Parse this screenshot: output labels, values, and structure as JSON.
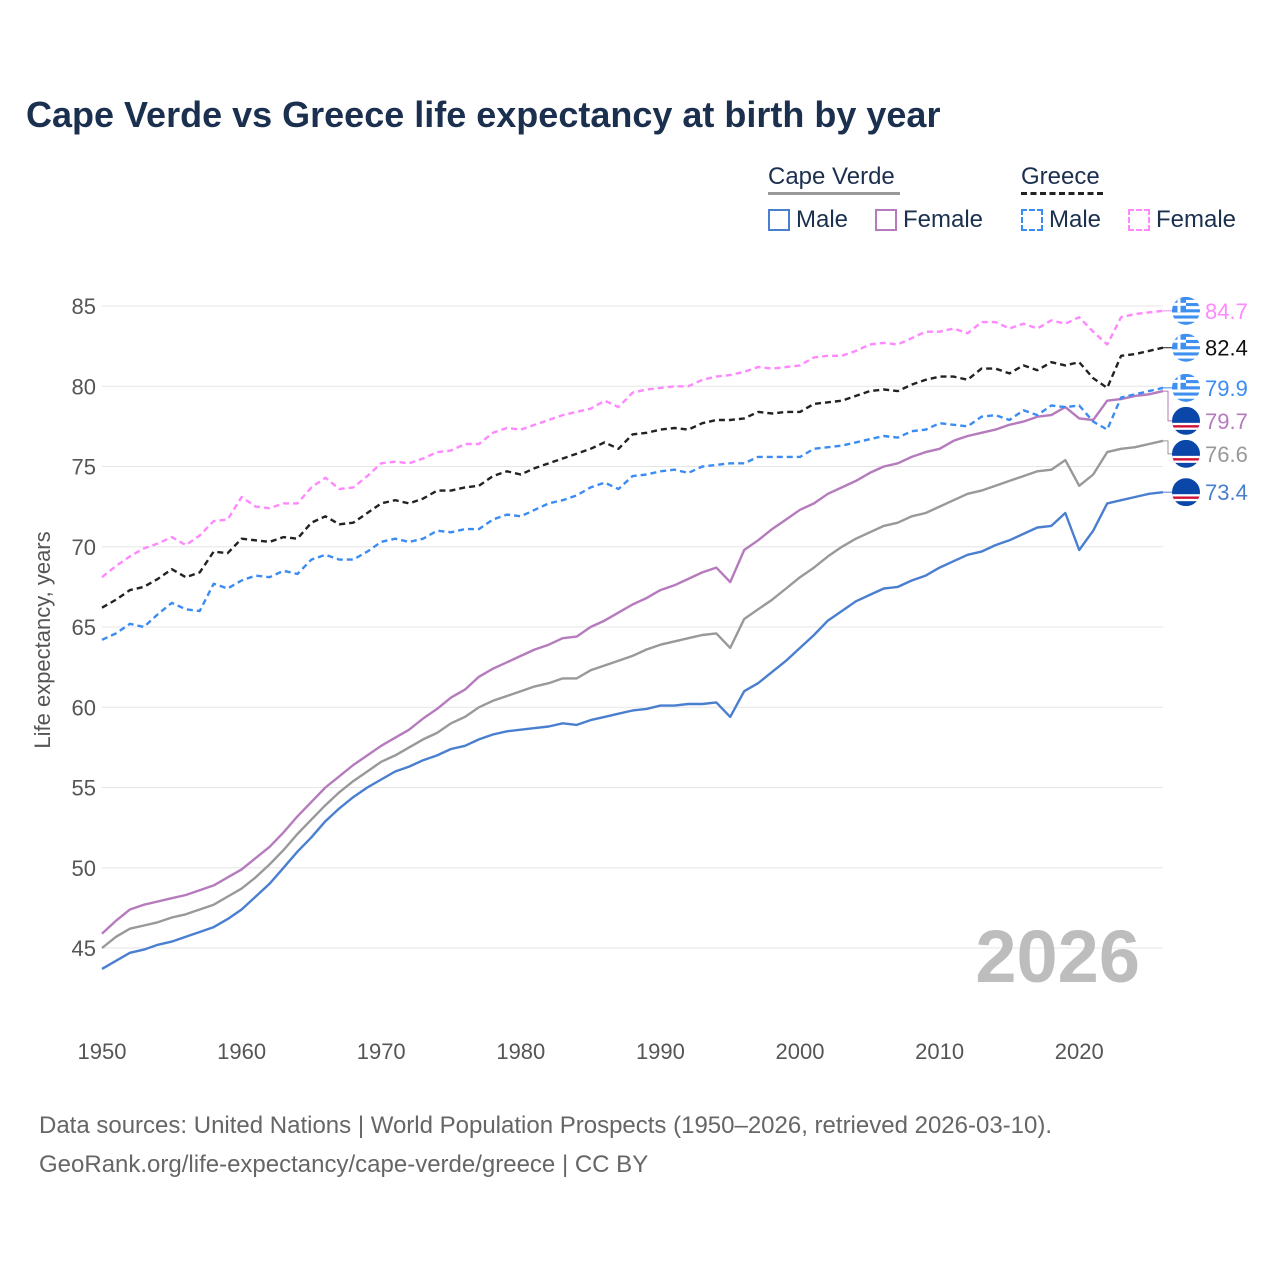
{
  "title": "Cape Verde vs Greece life expectancy at birth by year",
  "legend": {
    "groups": [
      {
        "name": "Cape Verde",
        "items": [
          "Male",
          "Female"
        ]
      },
      {
        "name": "Greece",
        "items": [
          "Male",
          "Female"
        ]
      }
    ]
  },
  "watermark_year": "2026",
  "footer": {
    "line1": "Data sources: United Nations | World Population Prospects (1950–2026, retrieved 2026-03-10).",
    "line2": "GeoRank.org/life-expectancy/cape-verde/greece | CC BY"
  },
  "chart_data": {
    "type": "line",
    "title": "Cape Verde vs Greece life expectancy at birth by year",
    "xlabel": "",
    "ylabel": "Life expectancy, years",
    "xlim": [
      1950,
      2026
    ],
    "ylim": [
      43,
      86
    ],
    "xticks": [
      "1950",
      "1960",
      "1970",
      "1980",
      "1990",
      "2000",
      "2010",
      "2020"
    ],
    "yticks": [
      "45",
      "50",
      "55",
      "60",
      "65",
      "70",
      "75",
      "80",
      "85"
    ],
    "grid": true,
    "legend_position": "top-right",
    "x_start": 1950,
    "series": [
      {
        "name": "Greece Female",
        "country": "Greece",
        "sex": "Female",
        "color": "#ff88ff",
        "dash": true,
        "end_label": "84.7",
        "values": [
          68.1,
          68.8,
          69.4,
          69.9,
          70.2,
          70.6,
          70.1,
          70.7,
          71.6,
          71.7,
          73.1,
          72.5,
          72.4,
          72.7,
          72.7,
          73.7,
          74.3,
          73.6,
          73.7,
          74.4,
          75.2,
          75.3,
          75.2,
          75.5,
          75.9,
          76.0,
          76.4,
          76.4,
          77.1,
          77.4,
          77.3,
          77.6,
          77.9,
          78.2,
          78.4,
          78.6,
          79.1,
          78.7,
          79.6,
          79.8,
          79.9,
          80.0,
          80.0,
          80.4,
          80.6,
          80.7,
          80.9,
          81.2,
          81.1,
          81.2,
          81.3,
          81.8,
          81.9,
          81.9,
          82.2,
          82.6,
          82.7,
          82.6,
          83.0,
          83.4,
          83.4,
          83.6,
          83.3,
          84.0,
          84.0,
          83.6,
          83.9,
          83.6,
          84.1,
          83.9,
          84.3,
          83.4,
          82.6,
          84.3,
          84.5,
          84.6,
          84.7
        ]
      },
      {
        "name": "Greece Total",
        "country": "Greece",
        "sex": "Total",
        "color": "#222222",
        "dash": true,
        "end_label": "82.4",
        "values": [
          66.2,
          66.7,
          67.3,
          67.5,
          68.0,
          68.6,
          68.1,
          68.4,
          69.7,
          69.6,
          70.5,
          70.4,
          70.3,
          70.6,
          70.5,
          71.5,
          71.9,
          71.4,
          71.5,
          72.1,
          72.7,
          72.9,
          72.7,
          73.0,
          73.5,
          73.5,
          73.7,
          73.8,
          74.4,
          74.7,
          74.5,
          74.9,
          75.2,
          75.5,
          75.8,
          76.1,
          76.5,
          76.1,
          77.0,
          77.1,
          77.3,
          77.4,
          77.3,
          77.7,
          77.9,
          77.9,
          78.0,
          78.4,
          78.3,
          78.4,
          78.4,
          78.9,
          79.0,
          79.1,
          79.4,
          79.7,
          79.8,
          79.7,
          80.1,
          80.4,
          80.6,
          80.6,
          80.4,
          81.1,
          81.1,
          80.8,
          81.3,
          81.0,
          81.5,
          81.3,
          81.5,
          80.5,
          79.9,
          81.9,
          82.0,
          82.2,
          82.4
        ]
      },
      {
        "name": "Greece Male",
        "country": "Greece",
        "sex": "Male",
        "color": "#3b8cf2",
        "dash": true,
        "end_label": "79.9",
        "values": [
          64.2,
          64.6,
          65.2,
          65.0,
          65.8,
          66.5,
          66.1,
          66.0,
          67.7,
          67.4,
          67.9,
          68.2,
          68.1,
          68.5,
          68.3,
          69.2,
          69.5,
          69.2,
          69.2,
          69.7,
          70.3,
          70.5,
          70.3,
          70.5,
          71.0,
          70.9,
          71.1,
          71.1,
          71.7,
          72.0,
          71.9,
          72.3,
          72.7,
          72.9,
          73.2,
          73.7,
          74.0,
          73.6,
          74.4,
          74.5,
          74.7,
          74.8,
          74.6,
          75.0,
          75.1,
          75.2,
          75.2,
          75.6,
          75.6,
          75.6,
          75.6,
          76.1,
          76.2,
          76.3,
          76.5,
          76.7,
          76.9,
          76.8,
          77.2,
          77.3,
          77.7,
          77.6,
          77.5,
          78.1,
          78.2,
          77.9,
          78.5,
          78.2,
          78.8,
          78.7,
          78.8,
          77.8,
          77.3,
          79.3,
          79.5,
          79.7,
          79.9
        ]
      },
      {
        "name": "Cape Verde Female",
        "country": "Cape Verde",
        "sex": "Female",
        "color": "#b57bbd",
        "dash": false,
        "end_label": "79.7",
        "values": [
          45.9,
          46.7,
          47.4,
          47.7,
          47.9,
          48.1,
          48.3,
          48.6,
          48.9,
          49.4,
          49.9,
          50.6,
          51.3,
          52.2,
          53.2,
          54.1,
          55.0,
          55.7,
          56.4,
          57.0,
          57.6,
          58.1,
          58.6,
          59.3,
          59.9,
          60.6,
          61.1,
          61.9,
          62.4,
          62.8,
          63.2,
          63.6,
          63.9,
          64.3,
          64.4,
          65.0,
          65.4,
          65.9,
          66.4,
          66.8,
          67.3,
          67.6,
          68.0,
          68.4,
          68.7,
          67.8,
          69.8,
          70.4,
          71.1,
          71.7,
          72.3,
          72.7,
          73.3,
          73.7,
          74.1,
          74.6,
          75.0,
          75.2,
          75.6,
          75.9,
          76.1,
          76.6,
          76.9,
          77.1,
          77.3,
          77.6,
          77.8,
          78.1,
          78.2,
          78.7,
          78.0,
          77.9,
          79.1,
          79.2,
          79.4,
          79.5,
          79.7
        ]
      },
      {
        "name": "Cape Verde Total",
        "country": "Cape Verde",
        "sex": "Total",
        "color": "#999999",
        "dash": false,
        "end_label": "76.6",
        "values": [
          45.0,
          45.7,
          46.2,
          46.4,
          46.6,
          46.9,
          47.1,
          47.4,
          47.7,
          48.2,
          48.7,
          49.4,
          50.2,
          51.1,
          52.1,
          53.0,
          53.9,
          54.7,
          55.4,
          56.0,
          56.6,
          57.0,
          57.5,
          58.0,
          58.4,
          59.0,
          59.4,
          60.0,
          60.4,
          60.7,
          61.0,
          61.3,
          61.5,
          61.8,
          61.8,
          62.3,
          62.6,
          62.9,
          63.2,
          63.6,
          63.9,
          64.1,
          64.3,
          64.5,
          64.6,
          63.7,
          65.5,
          66.1,
          66.7,
          67.4,
          68.1,
          68.7,
          69.4,
          70.0,
          70.5,
          70.9,
          71.3,
          71.5,
          71.9,
          72.1,
          72.5,
          72.9,
          73.3,
          73.5,
          73.8,
          74.1,
          74.4,
          74.7,
          74.8,
          75.4,
          73.8,
          74.5,
          75.9,
          76.1,
          76.2,
          76.4,
          76.6
        ]
      },
      {
        "name": "Cape Verde Male",
        "country": "Cape Verde",
        "sex": "Male",
        "color": "#4a7fd0",
        "dash": false,
        "end_label": "73.4",
        "values": [
          43.7,
          44.2,
          44.7,
          44.9,
          45.2,
          45.4,
          45.7,
          46.0,
          46.3,
          46.8,
          47.4,
          48.2,
          49.0,
          50.0,
          51.0,
          51.9,
          52.9,
          53.7,
          54.4,
          55.0,
          55.5,
          56.0,
          56.3,
          56.7,
          57.0,
          57.4,
          57.6,
          58.0,
          58.3,
          58.5,
          58.6,
          58.7,
          58.8,
          59.0,
          58.9,
          59.2,
          59.4,
          59.6,
          59.8,
          59.9,
          60.1,
          60.1,
          60.2,
          60.2,
          60.3,
          59.4,
          61.0,
          61.5,
          62.2,
          62.9,
          63.7,
          64.5,
          65.4,
          66.0,
          66.6,
          67.0,
          67.4,
          67.5,
          67.9,
          68.2,
          68.7,
          69.1,
          69.5,
          69.7,
          70.1,
          70.4,
          70.8,
          71.2,
          71.3,
          72.1,
          69.8,
          71.0,
          72.7,
          72.9,
          73.1,
          73.3,
          73.4
        ]
      }
    ]
  }
}
